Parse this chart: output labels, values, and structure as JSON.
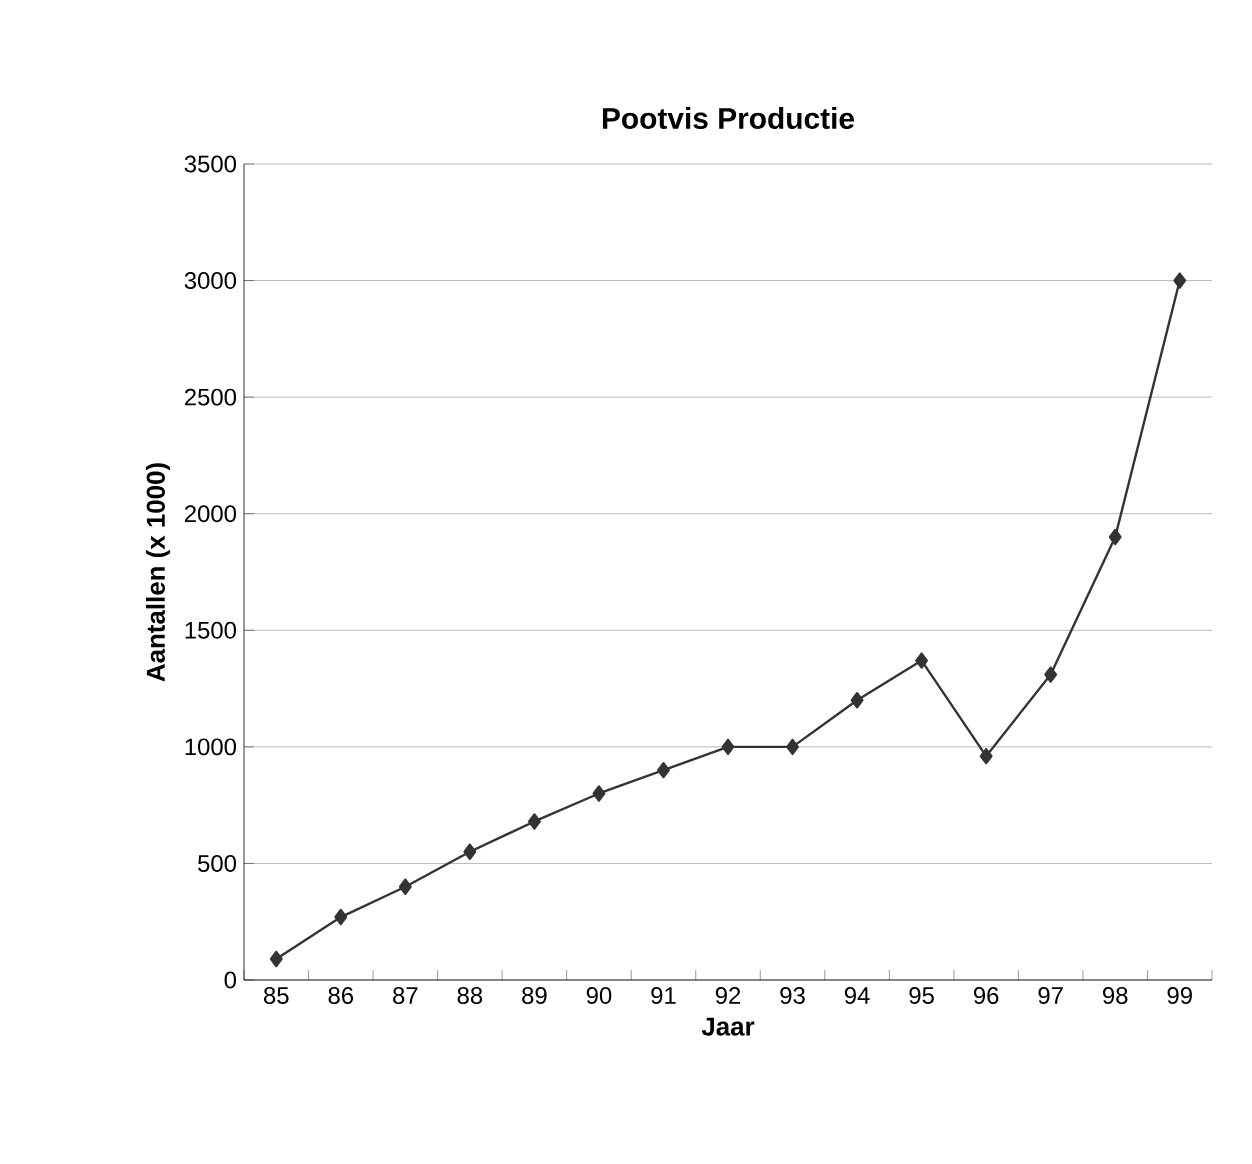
{
  "chart_data": {
    "type": "line",
    "title": "Pootvis Productie",
    "xlabel": "Jaar",
    "ylabel": "Aantallen (x 1000)",
    "categories": [
      "85",
      "86",
      "87",
      "88",
      "89",
      "90",
      "91",
      "92",
      "93",
      "94",
      "95",
      "96",
      "97",
      "98",
      "99"
    ],
    "values": [
      90,
      270,
      400,
      550,
      680,
      800,
      900,
      1000,
      1000,
      1200,
      1370,
      960,
      1310,
      1900,
      3000
    ],
    "color": "#333333",
    "marker": "diamond",
    "line_style": "solid",
    "grid": "y",
    "ylim": [
      0,
      3500
    ],
    "yticks": [
      0,
      500,
      1000,
      1500,
      2000,
      2500,
      3000,
      3500
    ]
  }
}
